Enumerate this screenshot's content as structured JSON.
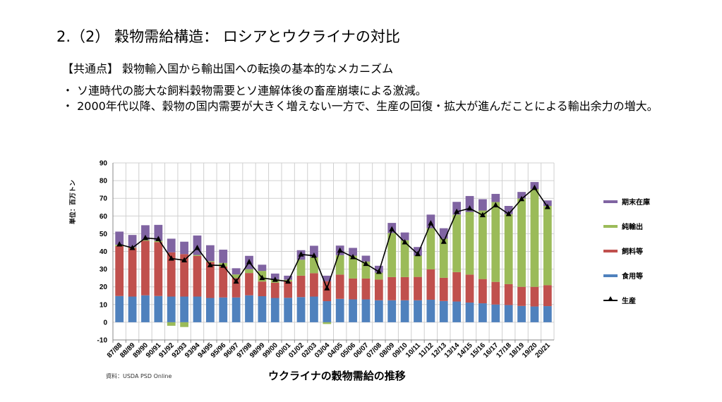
{
  "slide": {
    "title": "2.（2） 穀物需給構造： ロシアとウクライナの対比",
    "subtitle": "【共通点】 穀物輸入国から輸出国への転換の基本的なメカニズム",
    "bullets": [
      "・ ソ連時代の膨大な飼料穀物需要とソ連解体後の畜産崩壊による激減。",
      "・ 2000年代以降、穀物の国内需要が大きく増えない一方で、生産の回復・拡大が進んだことによる輸出余力の増大。"
    ],
    "source": "資料：USDA PSD Online"
  },
  "chart_data": {
    "type": "bar",
    "stacked": true,
    "title": "ウクライナの穀物需給の推移",
    "ylabel": "単位：百万トン",
    "xlabel": "",
    "ylim": [
      -10,
      90
    ],
    "yticks": [
      -10,
      0,
      10,
      20,
      30,
      40,
      50,
      60,
      70,
      80,
      90
    ],
    "grid": true,
    "legend_position": "right",
    "categories": [
      "87/88",
      "88/89",
      "89/90",
      "90/91",
      "91/92",
      "92/93",
      "93/94",
      "94/95",
      "95/96",
      "96/97",
      "97/98",
      "98/99",
      "99/00",
      "00/01",
      "01/02",
      "02/03",
      "03/04",
      "04/05",
      "05/06",
      "06/07",
      "07/08",
      "08/09",
      "09/10",
      "10/11",
      "11/12",
      "12/13",
      "13/14",
      "14/15",
      "15/16",
      "16/17",
      "17/18",
      "18/19",
      "19/20",
      "20/21"
    ],
    "series": [
      {
        "name": "食用等",
        "color": "#4f81bd",
        "values": [
          14.8,
          14.5,
          15.2,
          14.8,
          14.5,
          14.5,
          14.5,
          13.7,
          14.0,
          14.0,
          15.2,
          14.7,
          13.7,
          13.8,
          14.2,
          14.5,
          11.9,
          13.2,
          12.9,
          12.9,
          12.4,
          12.4,
          12.4,
          12.4,
          12.7,
          12.0,
          11.7,
          11.1,
          10.7,
          10.0,
          9.7,
          9.2,
          8.9,
          9.1
        ]
      },
      {
        "name": "飼料等",
        "color": "#c0504d",
        "values": [
          28.2,
          27.5,
          30.8,
          30.5,
          25.0,
          24.0,
          23.0,
          20.3,
          17.5,
          11.0,
          12.6,
          8.3,
          8.6,
          9.2,
          12.1,
          13.2,
          11.3,
          13.7,
          11.8,
          11.8,
          11.7,
          13.1,
          13.1,
          13.2,
          17.2,
          13.1,
          16.6,
          15.8,
          13.7,
          12.8,
          11.8,
          10.8,
          11.1,
          11.8
        ]
      },
      {
        "name": "純輸出",
        "color": "#9bbb59",
        "values": [
          0.8,
          0.3,
          0.5,
          0.7,
          -2.0,
          -2.7,
          0.5,
          0.5,
          2.0,
          2.0,
          2.2,
          6.0,
          2.0,
          1.0,
          9.0,
          9.0,
          -1.0,
          11.0,
          12.9,
          9.6,
          3.9,
          24.9,
          20.8,
          12.0,
          23.2,
          22.1,
          32.5,
          35.4,
          38.7,
          45.1,
          39.6,
          49.9,
          55.2,
          44.8
        ]
      },
      {
        "name": "期末在庫",
        "color": "#8064a2",
        "values": [
          7.4,
          7.0,
          8.3,
          9.0,
          7.7,
          7.0,
          11.0,
          9.0,
          7.5,
          3.5,
          7.5,
          3.5,
          3.2,
          2.3,
          5.4,
          6.5,
          3.1,
          5.4,
          4.4,
          3.3,
          3.9,
          5.7,
          4.4,
          4.9,
          7.7,
          5.9,
          7.2,
          9.0,
          6.4,
          4.6,
          4.6,
          3.7,
          4.0,
          3.1
        ]
      }
    ],
    "line_series": {
      "name": "生産",
      "color": "#000000",
      "marker": "triangle",
      "values": [
        44.0,
        42.0,
        47.6,
        47.0,
        36.0,
        35.0,
        42.0,
        32.3,
        32.0,
        23.0,
        34.0,
        25.0,
        24.0,
        23.0,
        38.3,
        37.6,
        19.2,
        40.5,
        36.8,
        33.0,
        28.5,
        52.5,
        45.2,
        38.5,
        55.9,
        45.5,
        62.4,
        64.3,
        60.5,
        66.1,
        61.1,
        69.6,
        75.9,
        65.1
      ]
    },
    "legend_order": [
      "期末在庫",
      "純輸出",
      "飼料等",
      "食用等",
      "生産"
    ]
  }
}
